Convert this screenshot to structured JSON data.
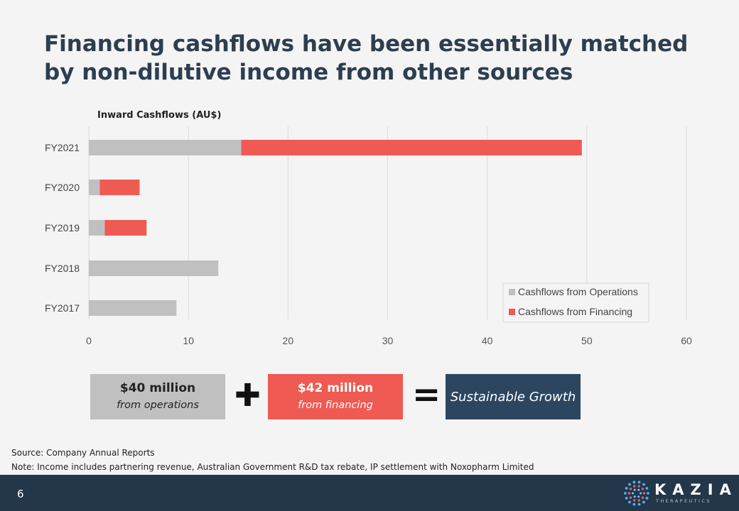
{
  "slide": {
    "title": "Financing cashflows have been essentially matched by non-dilutive income from other sources",
    "page_number": "6"
  },
  "chart_data": {
    "type": "bar",
    "orientation": "horizontal",
    "stacked": true,
    "title": "Inward Cashflows (AU$)",
    "categories": [
      "FY2021",
      "FY2020",
      "FY2019",
      "FY2018",
      "FY2017"
    ],
    "series": [
      {
        "name": "Cashflows from Operations",
        "color": "#c0c0c0",
        "values": [
          15.3,
          1.1,
          1.6,
          13.0,
          8.8
        ]
      },
      {
        "name": "Cashflows from Financing",
        "color": "#ef5a52",
        "values": [
          34.2,
          4.0,
          4.2,
          0,
          0
        ]
      }
    ],
    "xlim": [
      0,
      60
    ],
    "x_ticks": [
      "0",
      "10",
      "20",
      "30",
      "40",
      "50",
      "60"
    ],
    "grid": "vertical",
    "legend_position": "bottom-right"
  },
  "summary": {
    "operations": {
      "amount": "$40 million",
      "caption": "from operations"
    },
    "plus": "✚",
    "financing": {
      "amount": "$42 million",
      "caption": "from financing"
    },
    "equals": "=",
    "result": "Sustainable Growth"
  },
  "notes": {
    "source": "Source: Company Annual Reports",
    "note": "Note: Income includes partnering revenue, Australian Government R&D tax rebate, IP settlement with Noxopharm Limited"
  },
  "logo": {
    "name": "KAZIA",
    "tagline": "THERAPEUTICS",
    "icon": "kazia-dots-logo-icon"
  }
}
